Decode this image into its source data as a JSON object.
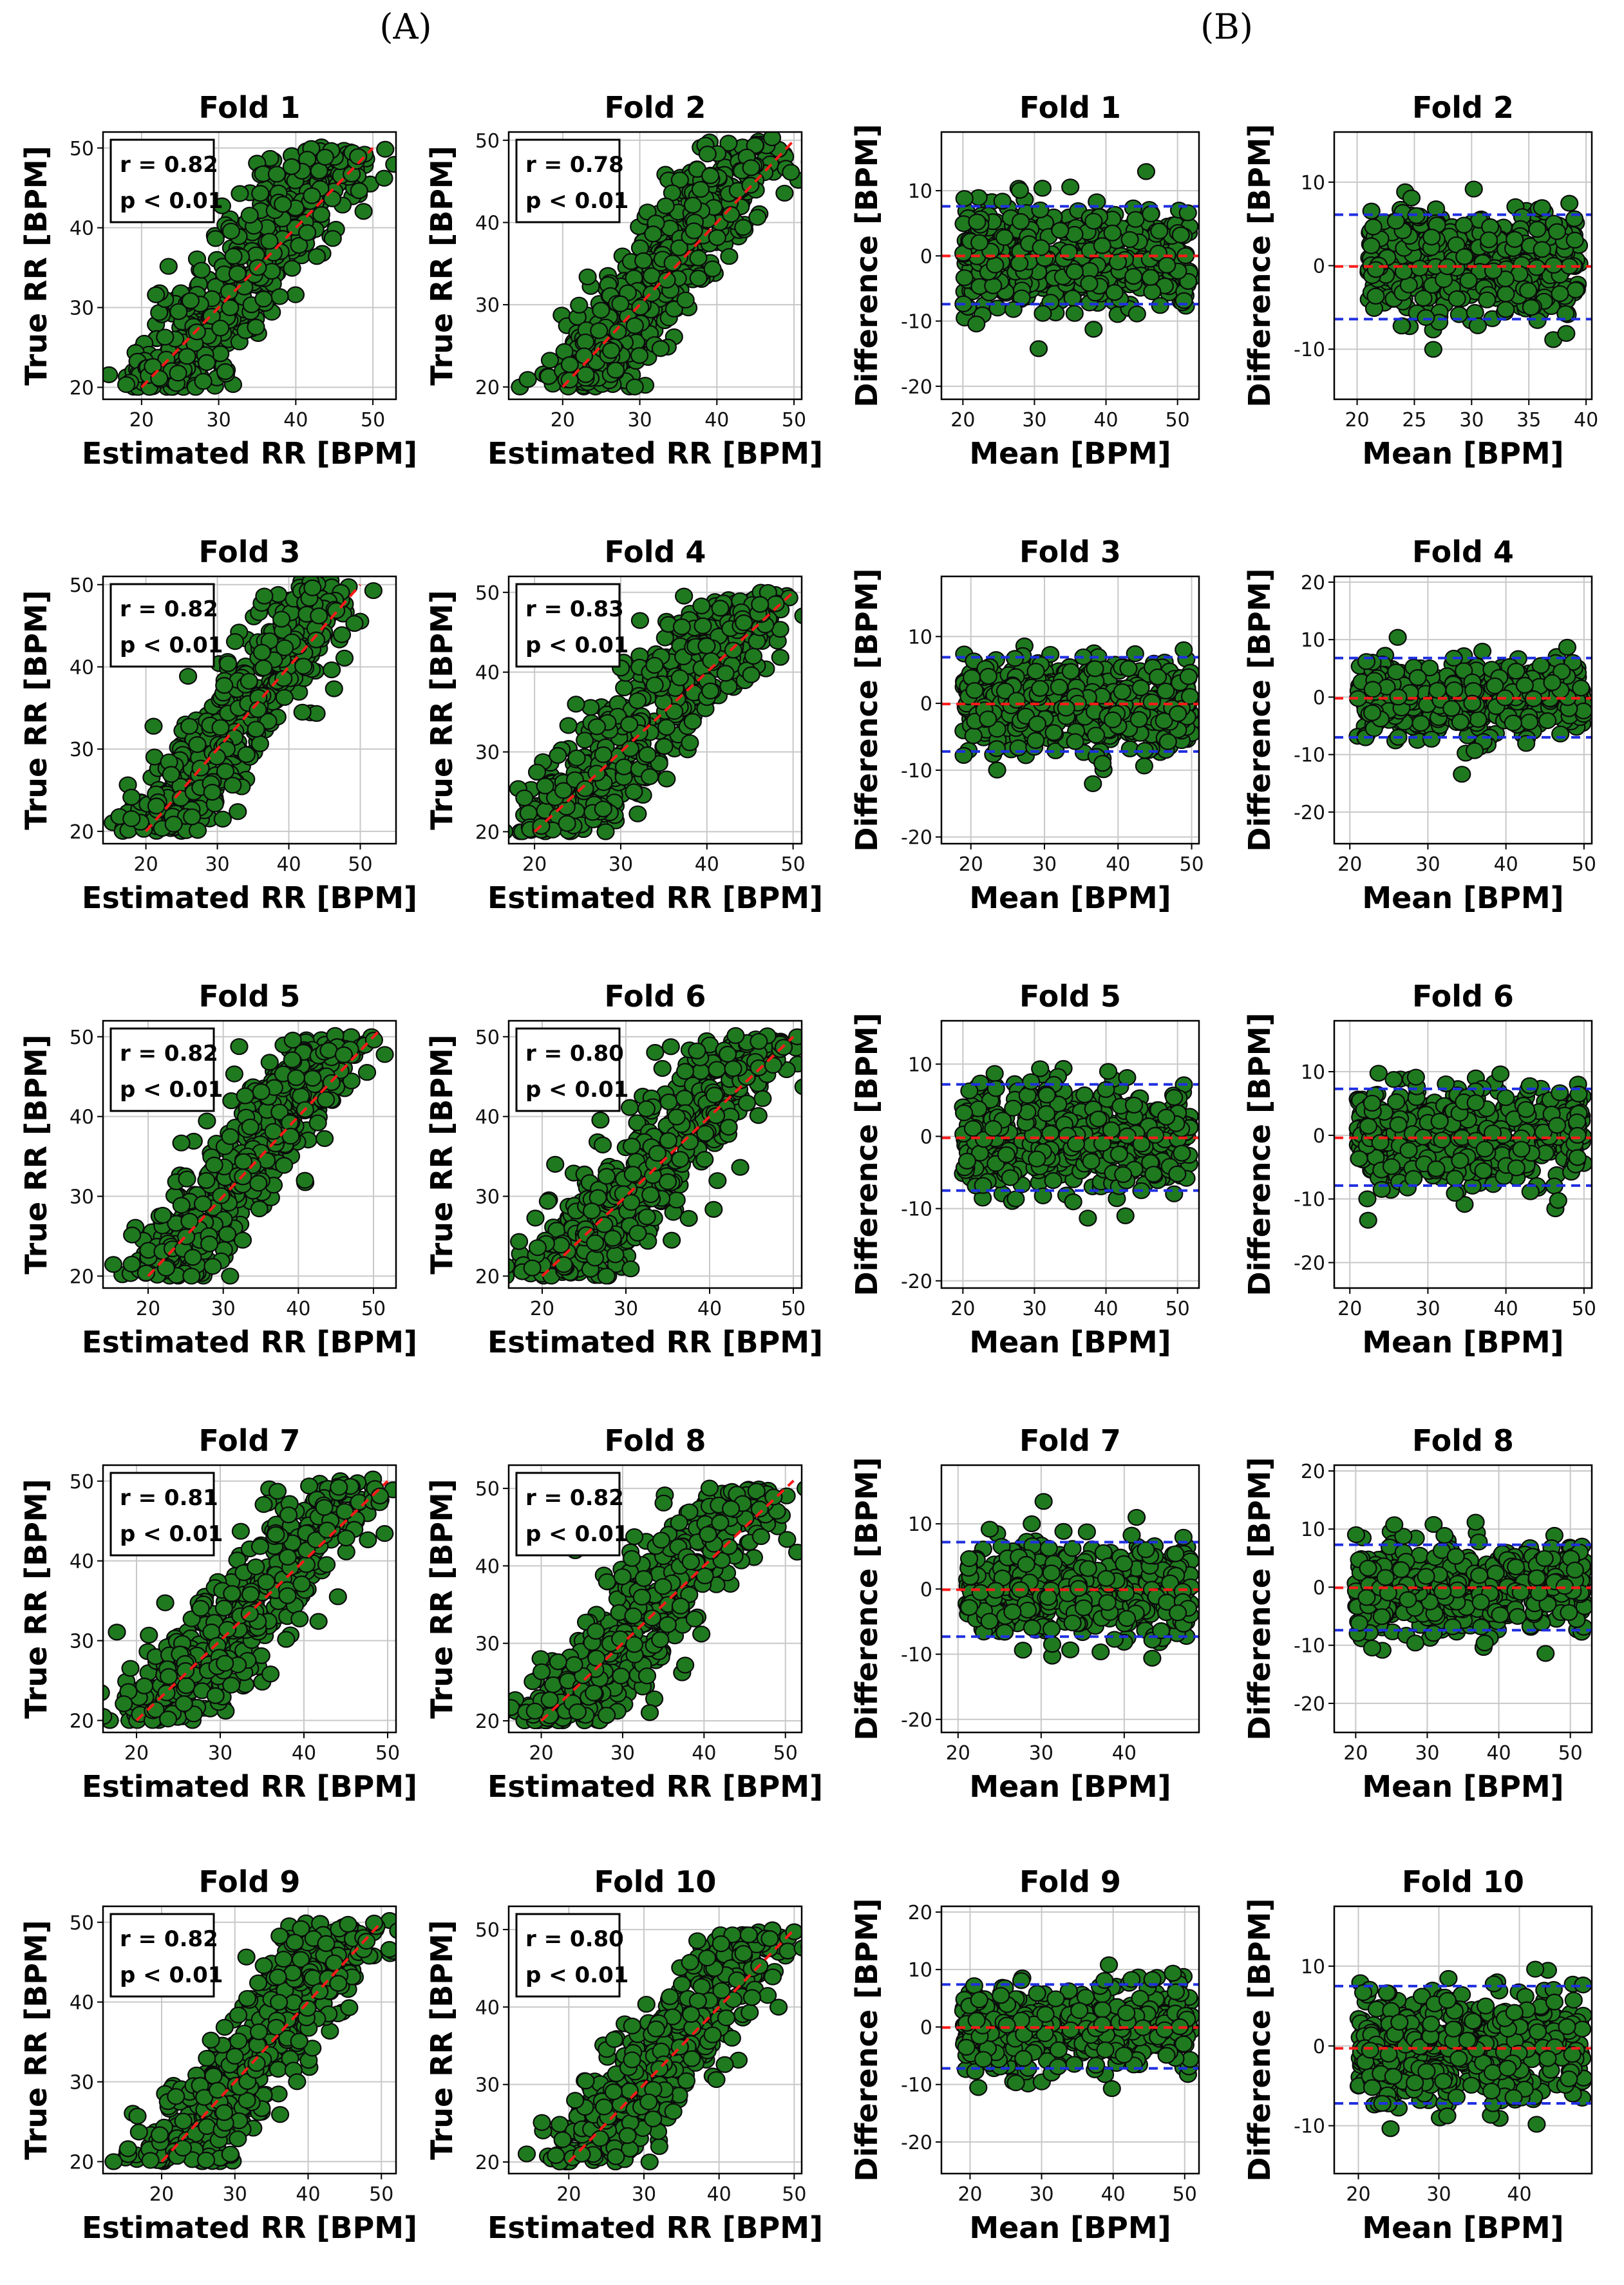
{
  "panel_labels": {
    "left": "(A)",
    "right": "(B)"
  },
  "colors": {
    "point_fill": "#1f7a1f",
    "point_edge": "#0a0a0a",
    "identity": "#ff1a1a",
    "mean_line": "#ff1a1a",
    "loa_line": "#1f2fe0",
    "grid": "#c8c8c8"
  },
  "chart_data": [
    {
      "panel": "A",
      "fold": 1,
      "type": "scatter",
      "title": "Fold 1",
      "xlabel": "Estimated RR [BPM]",
      "ylabel": "True RR [BPM]",
      "xlim": [
        15,
        53
      ],
      "ylim": [
        18.5,
        52
      ],
      "xticks": [
        20,
        30,
        40,
        50
      ],
      "yticks": [
        20,
        30,
        40,
        50
      ],
      "annotation": [
        "r = 0.82",
        "p < 0.01"
      ],
      "r": 0.82,
      "identity_line": [
        20,
        50
      ],
      "grid": true
    },
    {
      "panel": "A",
      "fold": 2,
      "type": "scatter",
      "title": "Fold 2",
      "xlabel": "Estimated RR [BPM]",
      "ylabel": "True RR [BPM]",
      "xlim": [
        13,
        51
      ],
      "ylim": [
        18.5,
        51
      ],
      "xticks": [
        20,
        30,
        40,
        50
      ],
      "yticks": [
        20,
        30,
        40,
        50
      ],
      "annotation": [
        "r = 0.78",
        "p < 0.01"
      ],
      "r": 0.78,
      "identity_line": [
        20,
        50
      ],
      "grid": true
    },
    {
      "panel": "A",
      "fold": 3,
      "type": "scatter",
      "title": "Fold 3",
      "xlabel": "Estimated RR [BPM]",
      "ylabel": "True RR [BPM]",
      "xlim": [
        14,
        55
      ],
      "ylim": [
        18.5,
        51
      ],
      "xticks": [
        20,
        30,
        40,
        50
      ],
      "yticks": [
        20,
        30,
        40,
        50
      ],
      "annotation": [
        "r = 0.82",
        "p < 0.01"
      ],
      "r": 0.82,
      "identity_line": [
        20,
        50
      ],
      "grid": true
    },
    {
      "panel": "A",
      "fold": 4,
      "type": "scatter",
      "title": "Fold 4",
      "xlabel": "Estimated RR [BPM]",
      "ylabel": "True RR [BPM]",
      "xlim": [
        17,
        51
      ],
      "ylim": [
        18.5,
        52
      ],
      "xticks": [
        20,
        30,
        40,
        50
      ],
      "yticks": [
        20,
        30,
        40,
        50
      ],
      "annotation": [
        "r = 0.83",
        "p < 0.01"
      ],
      "r": 0.83,
      "identity_line": [
        20,
        50
      ],
      "grid": true
    },
    {
      "panel": "A",
      "fold": 5,
      "type": "scatter",
      "title": "Fold 5",
      "xlabel": "Estimated RR [BPM]",
      "ylabel": "True RR [BPM]",
      "xlim": [
        14,
        53
      ],
      "ylim": [
        18.5,
        52
      ],
      "xticks": [
        20,
        30,
        40,
        50
      ],
      "yticks": [
        20,
        30,
        40,
        50
      ],
      "annotation": [
        "r = 0.82",
        "p < 0.01"
      ],
      "r": 0.82,
      "identity_line": [
        20,
        51
      ],
      "grid": true
    },
    {
      "panel": "A",
      "fold": 6,
      "type": "scatter",
      "title": "Fold 6",
      "xlabel": "Estimated RR [BPM]",
      "ylabel": "True RR [BPM]",
      "xlim": [
        16,
        51
      ],
      "ylim": [
        18.5,
        52
      ],
      "xticks": [
        20,
        30,
        40,
        50
      ],
      "yticks": [
        20,
        30,
        40,
        50
      ],
      "annotation": [
        "r = 0.80",
        "p < 0.01"
      ],
      "r": 0.8,
      "identity_line": [
        20,
        50
      ],
      "grid": true
    },
    {
      "panel": "A",
      "fold": 7,
      "type": "scatter",
      "title": "Fold 7",
      "xlabel": "Estimated RR [BPM]",
      "ylabel": "True RR [BPM]",
      "xlim": [
        16,
        51
      ],
      "ylim": [
        18.5,
        52
      ],
      "xticks": [
        20,
        30,
        40,
        50
      ],
      "yticks": [
        20,
        30,
        40,
        50
      ],
      "annotation": [
        "r = 0.81",
        "p < 0.01"
      ],
      "r": 0.81,
      "identity_line": [
        20,
        50
      ],
      "grid": true
    },
    {
      "panel": "A",
      "fold": 8,
      "type": "scatter",
      "title": "Fold 8",
      "xlabel": "Estimated RR [BPM]",
      "ylabel": "True RR [BPM]",
      "xlim": [
        16,
        52
      ],
      "ylim": [
        18.5,
        53
      ],
      "xticks": [
        20,
        30,
        40,
        50
      ],
      "yticks": [
        20,
        30,
        40,
        50
      ],
      "annotation": [
        "r = 0.82",
        "p < 0.01"
      ],
      "r": 0.82,
      "identity_line": [
        20,
        51
      ],
      "grid": true
    },
    {
      "panel": "A",
      "fold": 9,
      "type": "scatter",
      "title": "Fold 9",
      "xlabel": "Estimated RR [BPM]",
      "ylabel": "True RR [BPM]",
      "xlim": [
        12,
        52
      ],
      "ylim": [
        18.5,
        52
      ],
      "xticks": [
        20,
        30,
        40,
        50
      ],
      "yticks": [
        20,
        30,
        40,
        50
      ],
      "annotation": [
        "r = 0.82",
        "p < 0.01"
      ],
      "r": 0.82,
      "identity_line": [
        20,
        50
      ],
      "grid": true
    },
    {
      "panel": "A",
      "fold": 10,
      "type": "scatter",
      "title": "Fold 10",
      "xlabel": "Estimated RR [BPM]",
      "ylabel": "True RR [BPM]",
      "xlim": [
        12,
        51
      ],
      "ylim": [
        18.5,
        53
      ],
      "xticks": [
        20,
        30,
        40,
        50
      ],
      "yticks": [
        20,
        30,
        40,
        50
      ],
      "annotation": [
        "r = 0.80",
        "p < 0.01"
      ],
      "r": 0.8,
      "identity_line": [
        20,
        50
      ],
      "grid": true
    },
    {
      "panel": "B",
      "fold": 1,
      "type": "scatter",
      "title": "Fold 1",
      "xlabel": "Mean [BPM]",
      "ylabel": "Difference [BPM]",
      "xlim": [
        17,
        53
      ],
      "ylim": [
        -22,
        19
      ],
      "xticks": [
        20,
        30,
        40,
        50
      ],
      "yticks": [
        -20,
        -10,
        0,
        10
      ],
      "mean_diff": 0.0,
      "loa": [
        -7.4,
        7.6
      ],
      "grid": true
    },
    {
      "panel": "B",
      "fold": 2,
      "type": "scatter",
      "title": "Fold 2",
      "xlabel": "Mean [BPM]",
      "ylabel": "Difference [BPM]",
      "xlim": [
        18,
        40.5
      ],
      "ylim": [
        -16,
        16
      ],
      "xticks": [
        20,
        25,
        30,
        35,
        40
      ],
      "yticks": [
        -10,
        0,
        10
      ],
      "mean_diff": -0.1,
      "loa": [
        -6.4,
        6.1
      ],
      "grid": true
    },
    {
      "panel": "B",
      "fold": 3,
      "type": "scatter",
      "title": "Fold 3",
      "xlabel": "Mean [BPM]",
      "ylabel": "Difference [BPM]",
      "xlim": [
        16,
        51
      ],
      "ylim": [
        -21,
        19
      ],
      "xticks": [
        20,
        30,
        40,
        50
      ],
      "yticks": [
        -20,
        -10,
        0,
        10
      ],
      "mean_diff": -0.1,
      "loa": [
        -7.2,
        6.9
      ],
      "grid": true
    },
    {
      "panel": "B",
      "fold": 4,
      "type": "scatter",
      "title": "Fold 4",
      "xlabel": "Mean [BPM]",
      "ylabel": "Difference [BPM]",
      "xlim": [
        18,
        51
      ],
      "ylim": [
        -25.5,
        21
      ],
      "xticks": [
        20,
        30,
        40,
        50
      ],
      "yticks": [
        -20,
        -10,
        0,
        10,
        20
      ],
      "mean_diff": -0.2,
      "loa": [
        -7.0,
        6.8
      ],
      "grid": true
    },
    {
      "panel": "B",
      "fold": 5,
      "type": "scatter",
      "title": "Fold 5",
      "xlabel": "Mean [BPM]",
      "ylabel": "Difference [BPM]",
      "xlim": [
        17,
        53
      ],
      "ylim": [
        -21,
        16
      ],
      "xticks": [
        20,
        30,
        40,
        50
      ],
      "yticks": [
        -20,
        -10,
        0,
        10
      ],
      "mean_diff": -0.2,
      "loa": [
        -7.5,
        7.2
      ],
      "grid": true
    },
    {
      "panel": "B",
      "fold": 6,
      "type": "scatter",
      "title": "Fold 6",
      "xlabel": "Mean [BPM]",
      "ylabel": "Difference [BPM]",
      "xlim": [
        18,
        51
      ],
      "ylim": [
        -24,
        18
      ],
      "xticks": [
        20,
        30,
        40,
        50
      ],
      "yticks": [
        -20,
        -10,
        0,
        10
      ],
      "mean_diff": -0.4,
      "loa": [
        -7.9,
        7.3
      ],
      "grid": true
    },
    {
      "panel": "B",
      "fold": 7,
      "type": "scatter",
      "title": "Fold 7",
      "xlabel": "Mean [BPM]",
      "ylabel": "Difference [BPM]",
      "xlim": [
        18,
        49
      ],
      "ylim": [
        -22,
        19
      ],
      "xticks": [
        20,
        30,
        40
      ],
      "yticks": [
        -20,
        -10,
        0,
        10
      ],
      "mean_diff": -0.1,
      "loa": [
        -7.3,
        7.2
      ],
      "grid": true
    },
    {
      "panel": "B",
      "fold": 8,
      "type": "scatter",
      "title": "Fold 8",
      "xlabel": "Mean [BPM]",
      "ylabel": "Difference [BPM]",
      "xlim": [
        17,
        53
      ],
      "ylim": [
        -25,
        21
      ],
      "xticks": [
        20,
        30,
        40,
        50
      ],
      "yticks": [
        -20,
        -10,
        0,
        10,
        20
      ],
      "mean_diff": -0.1,
      "loa": [
        -7.4,
        7.3
      ],
      "grid": true
    },
    {
      "panel": "B",
      "fold": 9,
      "type": "scatter",
      "title": "Fold 9",
      "xlabel": "Mean [BPM]",
      "ylabel": "Difference [BPM]",
      "xlim": [
        16,
        52
      ],
      "ylim": [
        -25.5,
        21
      ],
      "xticks": [
        20,
        30,
        40,
        50
      ],
      "yticks": [
        -20,
        -10,
        0,
        10,
        20
      ],
      "mean_diff": -0.1,
      "loa": [
        -7.2,
        7.4
      ],
      "grid": true
    },
    {
      "panel": "B",
      "fold": 10,
      "type": "scatter",
      "title": "Fold 10",
      "xlabel": "Mean [BPM]",
      "ylabel": "Difference [BPM]",
      "xlim": [
        17,
        49
      ],
      "ylim": [
        -16,
        17.5
      ],
      "xticks": [
        20,
        30,
        40
      ],
      "yticks": [
        -10,
        0,
        10
      ],
      "mean_diff": -0.3,
      "loa": [
        -7.2,
        7.5
      ],
      "grid": true
    }
  ]
}
